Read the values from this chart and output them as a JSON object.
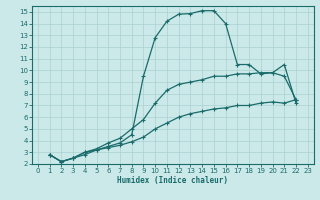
{
  "xlabel": "Humidex (Indice chaleur)",
  "bg_color": "#cce9e9",
  "grid_color": "#aad0d0",
  "line_color": "#1a6b6b",
  "xlim": [
    -0.5,
    23.5
  ],
  "ylim": [
    2,
    15.5
  ],
  "xticks": [
    0,
    1,
    2,
    3,
    4,
    5,
    6,
    7,
    8,
    9,
    10,
    11,
    12,
    13,
    14,
    15,
    16,
    17,
    18,
    19,
    20,
    21,
    22,
    23
  ],
  "yticks": [
    2,
    3,
    4,
    5,
    6,
    7,
    8,
    9,
    10,
    11,
    12,
    13,
    14,
    15
  ],
  "line1_x": [
    1,
    2,
    3,
    4,
    5,
    6,
    7,
    8,
    9,
    10,
    11,
    12,
    13,
    14,
    15,
    16,
    17,
    18,
    19,
    20,
    21,
    22
  ],
  "line1_y": [
    2.8,
    2.2,
    2.5,
    2.8,
    3.2,
    3.5,
    3.8,
    4.5,
    9.5,
    12.8,
    14.2,
    14.8,
    14.85,
    15.1,
    15.1,
    14.0,
    10.5,
    10.5,
    9.7,
    9.8,
    10.5,
    7.2
  ],
  "line2_x": [
    1,
    2,
    3,
    4,
    5,
    6,
    7,
    8,
    9,
    10,
    11,
    12,
    13,
    14,
    15,
    16,
    17,
    18,
    19,
    20,
    21,
    22
  ],
  "line2_y": [
    2.8,
    2.2,
    2.5,
    3.0,
    3.3,
    3.8,
    4.2,
    5.0,
    5.8,
    7.2,
    8.3,
    8.8,
    9.0,
    9.2,
    9.5,
    9.5,
    9.7,
    9.7,
    9.8,
    9.8,
    9.5,
    7.5
  ],
  "line3_x": [
    1,
    2,
    3,
    4,
    5,
    6,
    7,
    8,
    9,
    10,
    11,
    12,
    13,
    14,
    15,
    16,
    17,
    18,
    19,
    20,
    21,
    22
  ],
  "line3_y": [
    2.8,
    2.2,
    2.5,
    3.0,
    3.2,
    3.4,
    3.6,
    3.9,
    4.3,
    5.0,
    5.5,
    6.0,
    6.3,
    6.5,
    6.7,
    6.8,
    7.0,
    7.0,
    7.2,
    7.3,
    7.2,
    7.5
  ]
}
